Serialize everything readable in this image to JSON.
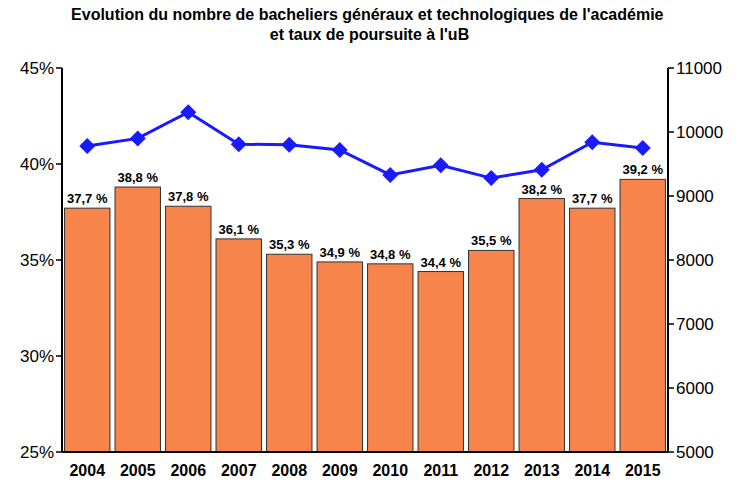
{
  "chart_data": {
    "type": "bar",
    "title": "Evolution du nombre de bacheliers généraux et technologiques de l'académie et taux de poursuite à l'uB",
    "categories": [
      "2004",
      "2005",
      "2006",
      "2007",
      "2008",
      "2009",
      "2010",
      "2011",
      "2012",
      "2013",
      "2014",
      "2015"
    ],
    "series": [
      {
        "type": "bar",
        "color": "#f7844a",
        "values": [
          37.7,
          38.8,
          37.8,
          36.1,
          35.3,
          34.9,
          34.8,
          34.4,
          35.5,
          38.2,
          37.7,
          39.2
        ],
        "value_labels": [
          "37,7 %",
          "38,8 %",
          "37,8 %",
          "36,1 %",
          "35,3 %",
          "34,9 %",
          "34,8 %",
          "34,4 %",
          "35,5 %",
          "38,2 %",
          "37,7 %",
          "39,2 %"
        ]
      },
      {
        "type": "line",
        "axis": "y2",
        "color": "#1a1aff",
        "marker": "diamond",
        "line_style": "solid",
        "values": [
          9780,
          9900,
          10310,
          9810,
          9800,
          9720,
          9330,
          9480,
          9280,
          9410,
          9840,
          9750
        ]
      }
    ],
    "ylim": [
      25,
      45
    ],
    "yticks": [
      {
        "value": 25,
        "label": "25%"
      },
      {
        "value": 30,
        "label": "30%"
      },
      {
        "value": 35,
        "label": "35%"
      },
      {
        "value": 40,
        "label": "40%"
      },
      {
        "value": 45,
        "label": "45%"
      }
    ],
    "y2lim": [
      5000,
      11000
    ],
    "y2ticks": [
      5000,
      6000,
      7000,
      8000,
      9000,
      10000,
      11000
    ],
    "grid": false,
    "data_labels": true
  }
}
